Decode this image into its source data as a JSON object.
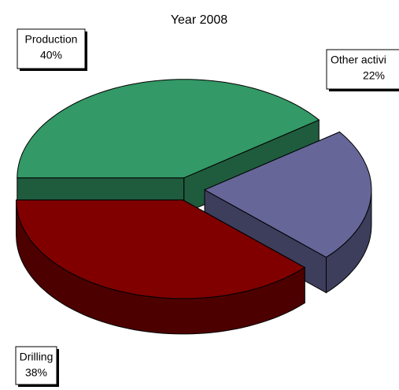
{
  "chart_data": {
    "type": "pie3d",
    "title": "Year 2008",
    "categories": [
      "Production",
      "Other activi",
      "Drilling"
    ],
    "values": [
      40,
      22,
      38
    ],
    "value_labels": [
      "40%",
      "22%",
      "38%"
    ],
    "colors": [
      "#339966",
      "#666699",
      "#800000"
    ]
  }
}
